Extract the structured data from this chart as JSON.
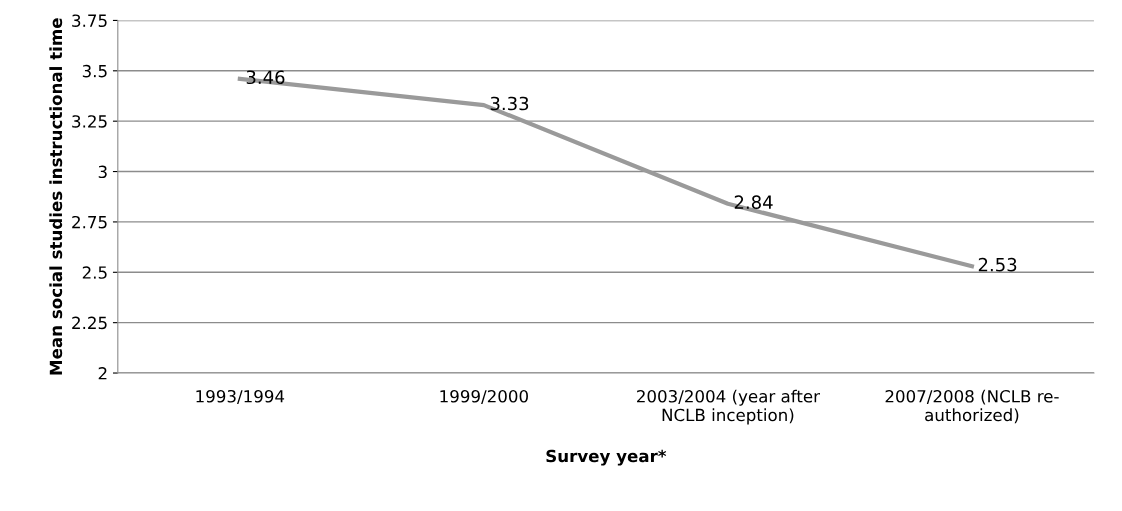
{
  "chart_data": {
    "type": "line",
    "categories": [
      "1993/1994",
      "1999/2000",
      "2003/2004 (year after\nNCLB inception)",
      "2007/2008 (NCLB re-\nauthorized)"
    ],
    "values": [
      3.46,
      3.33,
      2.84,
      2.53
    ],
    "color": "#9a9a9a",
    "xlabel": "Survey year*",
    "ylabel": "Mean social studies instructional time",
    "ylim": [
      2,
      3.75
    ],
    "yticks": [
      2,
      2.25,
      2.5,
      2.75,
      3,
      3.25,
      3.5,
      3.75
    ],
    "grid": "y",
    "data_labels": true,
    "marker": "none",
    "line_style": "solid"
  }
}
